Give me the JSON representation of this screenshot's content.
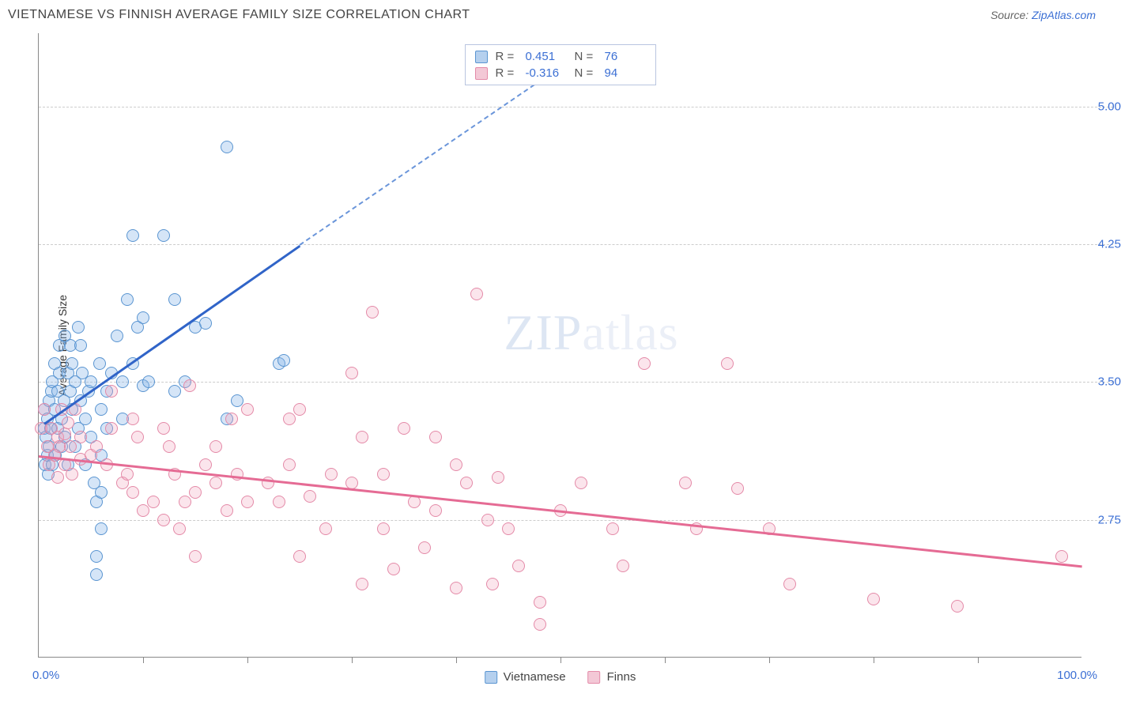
{
  "title": "VIETNAMESE VS FINNISH AVERAGE FAMILY SIZE CORRELATION CHART",
  "source_label": "Source:",
  "source_link": "ZipAtlas.com",
  "watermark": "ZIPatlas",
  "chart": {
    "type": "scatter",
    "ylabel": "Average Family Size",
    "xlim": [
      0,
      100
    ],
    "ylim": [
      2.0,
      5.4
    ],
    "x_min_label": "0.0%",
    "x_max_label": "100.0%",
    "yticks": [
      2.75,
      3.5,
      4.25,
      5.0
    ],
    "ytick_labels": [
      "2.75",
      "3.50",
      "4.25",
      "5.00"
    ],
    "xtick_positions": [
      10,
      20,
      30,
      40,
      50,
      60,
      70,
      80,
      90
    ],
    "grid_color": "#cccccc",
    "background_color": "#ffffff",
    "series": [
      {
        "name": "Vietnamese",
        "color_fill": "#b5d0ee",
        "color_stroke": "#5a95d1",
        "marker": "circle",
        "marker_size": 16,
        "fill_opacity": 0.35,
        "R": "0.451",
        "N": "76",
        "trend": {
          "x1": 0.5,
          "y1": 3.28,
          "x2_solid": 25,
          "y2_solid": 4.25,
          "x2_dash": 50,
          "y2_dash": 5.22,
          "color": "#3064c8",
          "width": 2.5
        },
        "points": [
          [
            0.5,
            3.25
          ],
          [
            0.5,
            3.35
          ],
          [
            0.6,
            3.05
          ],
          [
            0.7,
            3.2
          ],
          [
            0.8,
            3.3
          ],
          [
            0.8,
            3.1
          ],
          [
            0.9,
            3.0
          ],
          [
            1.0,
            3.4
          ],
          [
            1.0,
            3.15
          ],
          [
            1.1,
            3.25
          ],
          [
            1.2,
            3.45
          ],
          [
            1.3,
            3.05
          ],
          [
            1.3,
            3.5
          ],
          [
            1.5,
            3.35
          ],
          [
            1.5,
            3.6
          ],
          [
            1.6,
            3.1
          ],
          [
            1.8,
            3.25
          ],
          [
            1.8,
            3.45
          ],
          [
            2.0,
            3.55
          ],
          [
            2.0,
            3.7
          ],
          [
            2.2,
            3.3
          ],
          [
            2.2,
            3.15
          ],
          [
            2.4,
            3.4
          ],
          [
            2.5,
            3.75
          ],
          [
            2.5,
            3.2
          ],
          [
            2.8,
            3.55
          ],
          [
            2.8,
            3.05
          ],
          [
            3.0,
            3.45
          ],
          [
            3.0,
            3.7
          ],
          [
            3.2,
            3.35
          ],
          [
            3.2,
            3.6
          ],
          [
            3.5,
            3.15
          ],
          [
            3.5,
            3.5
          ],
          [
            3.8,
            3.8
          ],
          [
            3.8,
            3.25
          ],
          [
            4.0,
            3.7
          ],
          [
            4.0,
            3.4
          ],
          [
            4.2,
            3.55
          ],
          [
            4.5,
            3.3
          ],
          [
            4.5,
            3.05
          ],
          [
            4.8,
            3.45
          ],
          [
            5.0,
            3.5
          ],
          [
            5.0,
            3.2
          ],
          [
            5.3,
            2.95
          ],
          [
            5.5,
            2.85
          ],
          [
            5.5,
            2.55
          ],
          [
            5.5,
            2.45
          ],
          [
            5.8,
            3.6
          ],
          [
            6.0,
            3.1
          ],
          [
            6.0,
            3.35
          ],
          [
            6.0,
            2.7
          ],
          [
            6.0,
            2.9
          ],
          [
            6.5,
            3.45
          ],
          [
            6.5,
            3.25
          ],
          [
            7.0,
            3.55
          ],
          [
            7.5,
            3.75
          ],
          [
            8.0,
            3.5
          ],
          [
            8.0,
            3.3
          ],
          [
            8.5,
            3.95
          ],
          [
            9.0,
            3.6
          ],
          [
            9.0,
            4.3
          ],
          [
            9.5,
            3.8
          ],
          [
            10.0,
            3.85
          ],
          [
            10.0,
            3.48
          ],
          [
            10.5,
            3.5
          ],
          [
            12.0,
            4.3
          ],
          [
            13.0,
            3.95
          ],
          [
            13.0,
            3.45
          ],
          [
            14.0,
            3.5
          ],
          [
            15.0,
            3.8
          ],
          [
            16.0,
            3.82
          ],
          [
            18.0,
            4.78
          ],
          [
            18.0,
            3.3
          ],
          [
            19.0,
            3.4
          ],
          [
            23.0,
            3.6
          ],
          [
            23.5,
            3.62
          ]
        ]
      },
      {
        "name": "Finns",
        "color_fill": "#f3c8d6",
        "color_stroke": "#e48aa8",
        "marker": "circle",
        "marker_size": 16,
        "fill_opacity": 0.28,
        "R": "-0.316",
        "N": "94",
        "trend": {
          "x1": 0,
          "y1": 3.1,
          "x2_solid": 100,
          "y2_solid": 2.5,
          "color": "#e56b94",
          "width": 2.5
        },
        "points": [
          [
            0.2,
            3.25
          ],
          [
            0.5,
            3.35
          ],
          [
            0.8,
            3.15
          ],
          [
            1.0,
            3.05
          ],
          [
            1.2,
            3.25
          ],
          [
            1.5,
            3.1
          ],
          [
            1.8,
            3.2
          ],
          [
            1.8,
            2.98
          ],
          [
            2.0,
            3.15
          ],
          [
            2.2,
            3.35
          ],
          [
            2.5,
            3.05
          ],
          [
            2.5,
            3.22
          ],
          [
            2.8,
            3.28
          ],
          [
            3.0,
            3.15
          ],
          [
            3.2,
            3.0
          ],
          [
            3.5,
            3.35
          ],
          [
            4.0,
            3.08
          ],
          [
            4.0,
            3.2
          ],
          [
            5.0,
            3.1
          ],
          [
            5.5,
            3.15
          ],
          [
            6.5,
            3.05
          ],
          [
            7.0,
            3.25
          ],
          [
            7.0,
            3.45
          ],
          [
            8.0,
            2.95
          ],
          [
            8.5,
            3.0
          ],
          [
            9.0,
            2.9
          ],
          [
            9.0,
            3.3
          ],
          [
            9.5,
            3.2
          ],
          [
            10.0,
            2.8
          ],
          [
            11.0,
            2.85
          ],
          [
            12.0,
            3.25
          ],
          [
            12.0,
            2.75
          ],
          [
            12.5,
            3.15
          ],
          [
            13.0,
            3.0
          ],
          [
            13.5,
            2.7
          ],
          [
            14.0,
            2.85
          ],
          [
            14.5,
            3.48
          ],
          [
            15.0,
            2.9
          ],
          [
            15.0,
            2.55
          ],
          [
            16.0,
            3.05
          ],
          [
            17.0,
            2.95
          ],
          [
            17.0,
            3.15
          ],
          [
            18.0,
            2.8
          ],
          [
            18.5,
            3.3
          ],
          [
            19.0,
            3.0
          ],
          [
            20.0,
            2.85
          ],
          [
            20.0,
            3.35
          ],
          [
            22.0,
            2.95
          ],
          [
            23.0,
            2.85
          ],
          [
            24.0,
            3.05
          ],
          [
            24.0,
            3.3
          ],
          [
            25.0,
            2.55
          ],
          [
            25.0,
            3.35
          ],
          [
            26.0,
            2.88
          ],
          [
            27.5,
            2.7
          ],
          [
            28.0,
            3.0
          ],
          [
            30.0,
            3.55
          ],
          [
            30.0,
            2.95
          ],
          [
            31.0,
            3.2
          ],
          [
            31.0,
            2.4
          ],
          [
            32.0,
            3.88
          ],
          [
            33.0,
            2.7
          ],
          [
            33.0,
            3.0
          ],
          [
            34.0,
            2.48
          ],
          [
            35.0,
            3.25
          ],
          [
            36.0,
            2.85
          ],
          [
            37.0,
            2.6
          ],
          [
            38.0,
            3.2
          ],
          [
            38.0,
            2.8
          ],
          [
            40.0,
            2.38
          ],
          [
            40.0,
            3.05
          ],
          [
            41.0,
            2.95
          ],
          [
            42.0,
            3.98
          ],
          [
            43.0,
            2.75
          ],
          [
            43.5,
            2.4
          ],
          [
            44.0,
            2.98
          ],
          [
            45.0,
            2.7
          ],
          [
            46.0,
            2.5
          ],
          [
            48.0,
            2.3
          ],
          [
            50.0,
            2.8
          ],
          [
            52.0,
            2.95
          ],
          [
            55.0,
            2.7
          ],
          [
            56.0,
            2.5
          ],
          [
            58.0,
            3.6
          ],
          [
            62.0,
            2.95
          ],
          [
            63.0,
            2.7
          ],
          [
            66.0,
            3.6
          ],
          [
            67.0,
            2.92
          ],
          [
            70.0,
            2.7
          ],
          [
            72.0,
            2.4
          ],
          [
            80.0,
            2.32
          ],
          [
            88.0,
            2.28
          ],
          [
            48.0,
            2.18
          ],
          [
            98.0,
            2.55
          ]
        ]
      }
    ]
  }
}
